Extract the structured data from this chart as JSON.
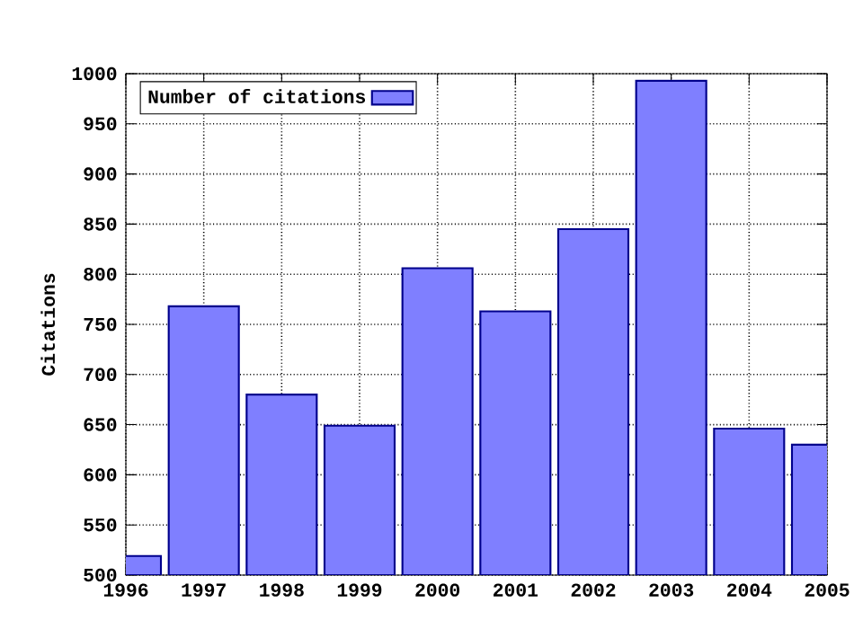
{
  "chart_data": {
    "type": "bar",
    "ylabel": "Citations",
    "x": [
      1996,
      1997,
      1998,
      1999,
      2000,
      2001,
      2002,
      2003,
      2004,
      2005
    ],
    "series": [
      {
        "name": "Number of citations",
        "color": "#7f7fff",
        "values": [
          519,
          768,
          680,
          649,
          806,
          763,
          845,
          993,
          646,
          630
        ]
      }
    ],
    "xlim": [
      1996,
      2005
    ],
    "xticks": [
      1996,
      1997,
      1998,
      1999,
      2000,
      2001,
      2002,
      2003,
      2004,
      2005
    ],
    "ylim": [
      500,
      1000
    ],
    "yticks": [
      500,
      550,
      600,
      650,
      700,
      750,
      800,
      850,
      900,
      950,
      1000
    ],
    "grid": true,
    "legend": "top left"
  }
}
